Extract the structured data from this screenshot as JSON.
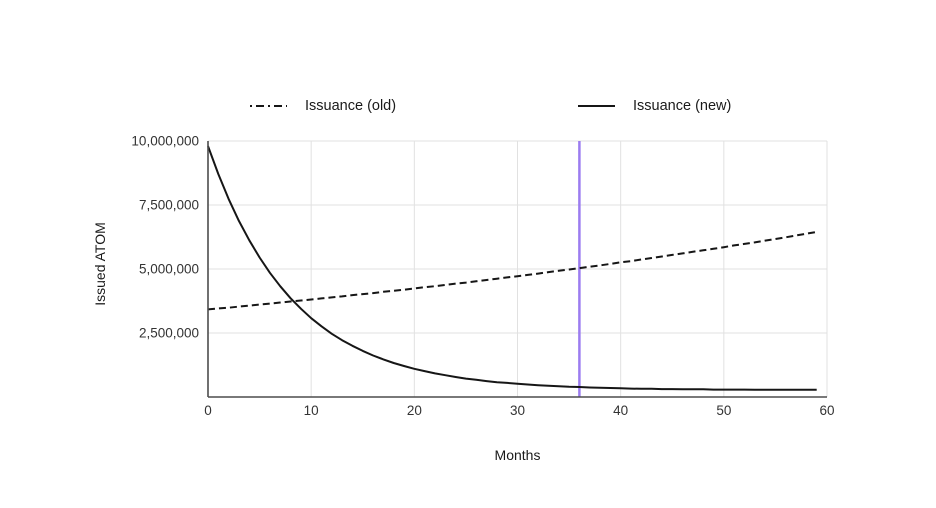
{
  "figure": {
    "background": "#ffffff",
    "colors": {
      "series_line": "#161616",
      "grid": "#e1e1e1",
      "axis": "#4d4d4d",
      "tick_text": "#333333",
      "title_text": "#1a1a1a",
      "marker_line": "#9c7cf0"
    }
  },
  "chart_data": {
    "type": "line",
    "title": "",
    "xlabel": "Months",
    "ylabel": "Issued ATOM",
    "xlim": [
      0,
      60
    ],
    "ylim": [
      0,
      10000000
    ],
    "grid": true,
    "legend_position": "top",
    "x_ticks": [
      0,
      10,
      20,
      30,
      40,
      50,
      60
    ],
    "x_tick_labels": [
      "0",
      "10",
      "20",
      "30",
      "40",
      "50",
      "60"
    ],
    "y_ticks": [
      2500000,
      5000000,
      7500000,
      10000000
    ],
    "y_tick_labels": [
      "2,500,000",
      "5,000,000",
      "7,500,000",
      "10,000,000"
    ],
    "annotations": [
      {
        "type": "vline",
        "x": 36,
        "color": "#9c7cf0"
      }
    ],
    "x": [
      0,
      1,
      2,
      3,
      4,
      5,
      6,
      7,
      8,
      9,
      10,
      11,
      12,
      13,
      14,
      15,
      16,
      17,
      18,
      19,
      20,
      21,
      22,
      23,
      24,
      25,
      26,
      27,
      28,
      29,
      30,
      31,
      32,
      33,
      34,
      35,
      36,
      37,
      38,
      39,
      40,
      41,
      42,
      43,
      44,
      45,
      46,
      47,
      48,
      49,
      50,
      51,
      52,
      53,
      54,
      55,
      56,
      57,
      58,
      59
    ],
    "series": [
      {
        "name": "Issuance (old)",
        "style": "dashed",
        "color": "#161616",
        "values": [
          3420000,
          3460000,
          3490000,
          3530000,
          3570000,
          3610000,
          3650000,
          3690000,
          3730000,
          3770000,
          3810000,
          3850000,
          3890000,
          3930000,
          3980000,
          4020000,
          4060000,
          4110000,
          4150000,
          4190000,
          4240000,
          4290000,
          4330000,
          4380000,
          4430000,
          4470000,
          4520000,
          4570000,
          4620000,
          4670000,
          4720000,
          4770000,
          4820000,
          4880000,
          4930000,
          4980000,
          5030000,
          5090000,
          5140000,
          5200000,
          5260000,
          5310000,
          5370000,
          5430000,
          5490000,
          5550000,
          5610000,
          5670000,
          5730000,
          5790000,
          5850000,
          5920000,
          5980000,
          6040000,
          6110000,
          6170000,
          6240000,
          6310000,
          6380000,
          6450000
        ]
      },
      {
        "name": "Issuance (new)",
        "style": "solid",
        "color": "#161616",
        "values": [
          9800000,
          8710000,
          7740000,
          6880000,
          6120000,
          5450000,
          4850000,
          4330000,
          3860000,
          3450000,
          3080000,
          2760000,
          2470000,
          2220000,
          2000000,
          1800000,
          1620000,
          1470000,
          1330000,
          1210000,
          1100000,
          1010000,
          920000,
          850000,
          780000,
          720000,
          670000,
          620000,
          580000,
          550000,
          520000,
          490000,
          460000,
          440000,
          420000,
          400000,
          390000,
          370000,
          360000,
          350000,
          340000,
          330000,
          320000,
          320000,
          310000,
          310000,
          300000,
          300000,
          300000,
          290000,
          290000,
          290000,
          290000,
          280000,
          280000,
          280000,
          280000,
          280000,
          280000,
          280000
        ]
      }
    ]
  }
}
